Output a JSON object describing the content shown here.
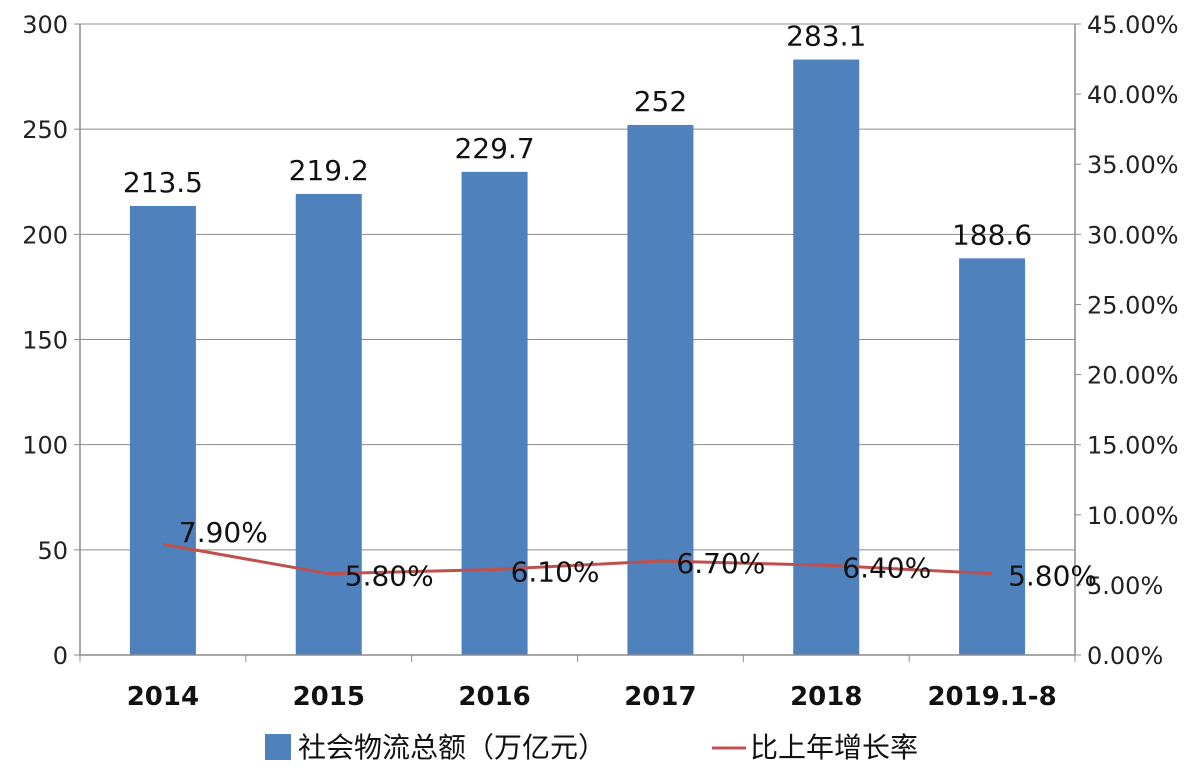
{
  "chart_data": {
    "type": "bar",
    "categories": [
      "2014",
      "2015",
      "2016",
      "2017",
      "2018",
      "2019.1-8"
    ],
    "series": [
      {
        "name": "社会物流总额（万亿元）",
        "type": "bar",
        "axis": "left",
        "color": "#4F81BD",
        "values": [
          213.5,
          219.2,
          229.7,
          252,
          283.1,
          188.6
        ],
        "labels": [
          "213.5",
          "219.2",
          "229.7",
          "252",
          "283.1",
          "188.6"
        ]
      },
      {
        "name": "比上年增长率",
        "type": "line",
        "axis": "right",
        "color": "#C0504D",
        "values": [
          7.9,
          5.8,
          6.1,
          6.7,
          6.4,
          5.8
        ],
        "labels": [
          "7.90%",
          "5.80%",
          "6.10%",
          "6.70%",
          "6.40%",
          "5.80%"
        ]
      }
    ],
    "left_axis": {
      "ylim": [
        0,
        300
      ],
      "ticks": [
        0,
        50,
        100,
        150,
        200,
        250,
        300
      ],
      "tick_labels": [
        "0",
        "50",
        "100",
        "150",
        "200",
        "250",
        "300"
      ]
    },
    "right_axis": {
      "ylim": [
        0,
        45
      ],
      "ticks": [
        0,
        5,
        10,
        15,
        20,
        25,
        30,
        35,
        40,
        45
      ],
      "tick_labels": [
        "0.00%",
        "5.00%",
        "10.00%",
        "15.00%",
        "20.00%",
        "25.00%",
        "30.00%",
        "35.00%",
        "40.00%",
        "45.00%"
      ]
    },
    "grid": true,
    "legend": "bottom"
  }
}
